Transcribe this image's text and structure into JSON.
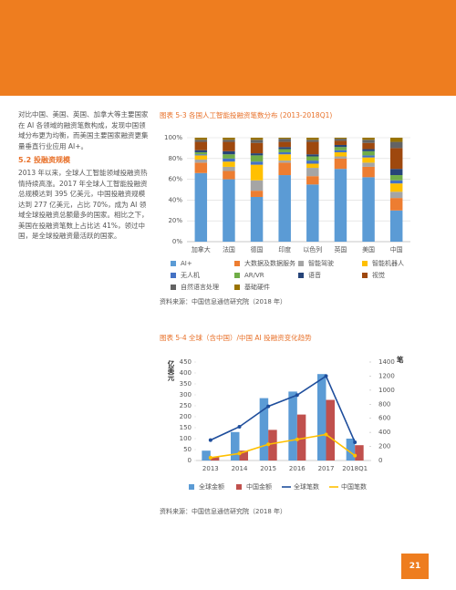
{
  "text": {
    "intro": "对比中国、美国、英国、加拿大等主要国家在 AI 各领域的融资笔数构成，发现中国领域分布更为均衡，而美国主要国家融资更集量垂直行业应用 AI+。",
    "heading": "5.2 投融资规模",
    "body": "2013 年以来，全球人工智能领域投融资热情持续高涨。2017 年全球人工智能投融资总规模达到 395 亿美元，中国投融资规模达到 277 亿美元，占比 70%，成为 AI 领域全球投融资总额最多的国家。相比之下，美国在投融资笔数上占比达 41%，领过中国，是全球投融资最活跃的国家。"
  },
  "page_number": "21",
  "chart_data": [
    {
      "type": "bar",
      "stacked": true,
      "title": "图表 5-3 各国人工智能投融资笔数分布 (2013-2018Q1)",
      "categories": [
        "加拿大",
        "法国",
        "德国",
        "印度",
        "以色列",
        "英国",
        "美国",
        "中国"
      ],
      "ylim": [
        0,
        100
      ],
      "yticks": [
        {
          "value": 0,
          "label": "0%"
        },
        {
          "value": 20,
          "label": "20%"
        },
        {
          "value": 40,
          "label": "40%"
        },
        {
          "value": 60,
          "label": "60%"
        },
        {
          "value": 80,
          "label": "80%"
        },
        {
          "value": 100,
          "label": "100%"
        }
      ],
      "grid": true,
      "series": [
        {
          "name": "AI+",
          "color": "#5b9bd5",
          "values": [
            66,
            60,
            43,
            64,
            55,
            70,
            62,
            30
          ]
        },
        {
          "name": "大数据及数据服务",
          "color": "#ed7d31",
          "values": [
            10,
            8,
            6,
            12,
            8,
            10,
            10,
            12
          ]
        },
        {
          "name": "智能驾驶",
          "color": "#a5a5a5",
          "values": [
            3,
            4,
            10,
            2,
            8,
            2,
            4,
            6
          ]
        },
        {
          "name": "智能机器人",
          "color": "#ffc000",
          "values": [
            4,
            5,
            15,
            6,
            4,
            4,
            5,
            8
          ]
        },
        {
          "name": "无人机",
          "color": "#4472c4",
          "values": [
            1,
            3,
            3,
            2,
            3,
            2,
            2,
            3
          ]
        },
        {
          "name": "AR/VR",
          "color": "#70ad47",
          "values": [
            2,
            4,
            6,
            3,
            4,
            3,
            4,
            5
          ]
        },
        {
          "name": "语音",
          "color": "#264478",
          "values": [
            2,
            3,
            2,
            2,
            2,
            2,
            2,
            6
          ]
        },
        {
          "name": "视觉",
          "color": "#9e480e",
          "values": [
            8,
            9,
            10,
            5,
            12,
            4,
            6,
            20
          ]
        },
        {
          "name": "自然语言处理",
          "color": "#636363",
          "values": [
            2,
            2,
            3,
            3,
            2,
            2,
            3,
            6
          ]
        },
        {
          "name": "基础硬件",
          "color": "#997300",
          "values": [
            2,
            2,
            2,
            1,
            2,
            1,
            2,
            4
          ]
        }
      ],
      "source": "资料来源：中国信息通信研究院（2018 年）"
    },
    {
      "type": "combo",
      "title": "图表 5-4 全球（含中国）/中国 AI 投融资变化趋势",
      "categories": [
        "2013",
        "2014",
        "2015",
        "2016",
        "2017",
        "2018Q1"
      ],
      "ylabel": "亿美元",
      "y2label": "笔",
      "ylim": [
        0,
        450
      ],
      "yticks": [
        0,
        50,
        100,
        150,
        200,
        250,
        300,
        350,
        400,
        450
      ],
      "y2lim": [
        0,
        1400
      ],
      "y2ticks": [
        0,
        200,
        400,
        600,
        800,
        1000,
        1200,
        1400
      ],
      "series": [
        {
          "name": "全球金额",
          "type": "bar",
          "color": "#5b9bd5",
          "values": [
            45,
            130,
            285,
            315,
            395,
            100
          ]
        },
        {
          "name": "中国金额",
          "type": "bar",
          "color": "#c0504d",
          "values": [
            15,
            45,
            140,
            210,
            277,
            70
          ]
        },
        {
          "name": "全球笔数",
          "type": "line",
          "axis": "y2",
          "color": "#1f4e9c",
          "values": [
            290,
            480,
            770,
            930,
            1200,
            260
          ]
        },
        {
          "name": "中国笔数",
          "type": "line",
          "axis": "y2",
          "color": "#ffc000",
          "values": [
            40,
            100,
            230,
            300,
            370,
            70
          ]
        }
      ],
      "source": "资料来源：中国信息通信研究院（2018 年）"
    }
  ]
}
